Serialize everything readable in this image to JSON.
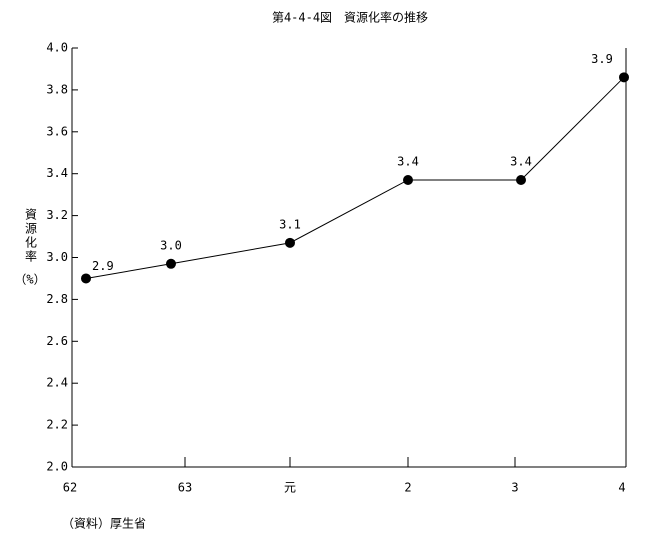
{
  "chart_data": {
    "type": "line",
    "title": "第4-4-4図　資源化率の推移",
    "y_label": "資源化率",
    "y_unit": "（%）",
    "source": "（資料）厚生省",
    "categories": [
      "62",
      "63",
      "元",
      "2",
      "3",
      "4"
    ],
    "values": [
      2.9,
      2.97,
      3.07,
      3.37,
      3.37,
      3.86
    ],
    "value_labels": [
      "2.9",
      "3.0",
      "3.1",
      "3.4",
      "3.4",
      "3.9"
    ],
    "color": "#000000",
    "ylim": [
      2.0,
      4.0
    ],
    "yticks": [
      {
        "value": 2.0,
        "label": "2.0"
      },
      2.2,
      2.4,
      2.6,
      2.8,
      {
        "value": 3.0,
        "label": "3.0"
      },
      3.2,
      3.4,
      3.6,
      3.8,
      {
        "value": 4.0,
        "label": "4.0"
      }
    ],
    "grid": false
  }
}
